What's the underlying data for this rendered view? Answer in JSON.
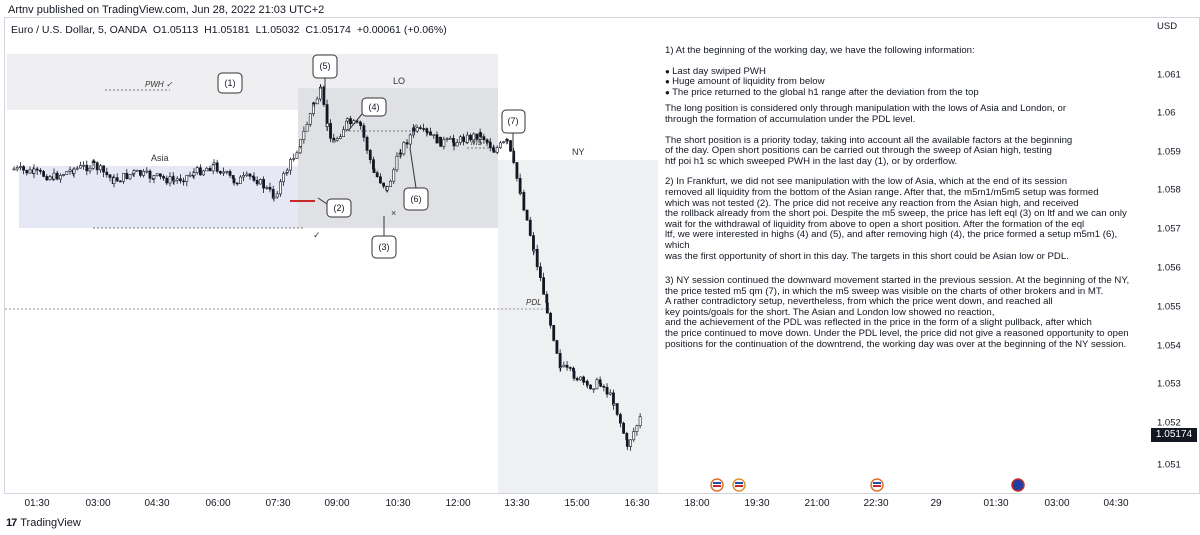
{
  "publisher_line": "Artnv published on TradingView.com, Jun 28, 2022 21:03 UTC+2",
  "ohlc": {
    "symbol": "Euro / U.S. Dollar, 5, OANDA",
    "open": "O1.05113",
    "high": "H1.05181",
    "low": "L1.05032",
    "close": "C1.05174",
    "change": "+0.00061 (+0.06%)"
  },
  "currency": "USD",
  "last_price": "1.05174",
  "footer_brand": "TradingView",
  "colors": {
    "bull": "#131722",
    "bear": "#131722",
    "asia_box": "#e6e8f5",
    "lo_box": "#e3e4e6",
    "ny_box": "#eff0f2",
    "level_line": "#888888",
    "pdl_line": "#999999",
    "red_marker": "#c62828"
  },
  "zone_labels": {
    "asia": "Asia",
    "lo": "LO",
    "ny": "NY",
    "pwh": "PWH ✓",
    "pdl": "PDL",
    "m5": "m5 ✓"
  },
  "callouts": [
    "(1)",
    "(2)",
    "(3)",
    "(4)",
    "(5)",
    "(6)",
    "(7)"
  ],
  "chart_data": {
    "type": "line",
    "title": "Euro / U.S. Dollar, 5, OANDA",
    "x_ticks": [
      "01:30",
      "03:00",
      "04:30",
      "06:00",
      "07:30",
      "09:00",
      "10:30",
      "12:00",
      "13:30",
      "15:00",
      "16:30",
      "18:00",
      "19:30",
      "21:00",
      "22:30",
      "29",
      "01:30",
      "03:00",
      "04:30"
    ],
    "y_ticks": [
      1.061,
      1.06,
      1.059,
      1.058,
      1.057,
      1.056,
      1.055,
      1.054,
      1.053,
      1.052,
      1.051
    ],
    "ylim": [
      1.0496,
      1.0636
    ],
    "series": [
      {
        "x": [
          "01:00",
          "01:30",
          "02:00",
          "02:30",
          "03:00",
          "03:30",
          "04:00",
          "04:30",
          "05:00",
          "05:30",
          "06:00",
          "06:30",
          "07:00",
          "07:30",
          "07:50",
          "08:10",
          "08:30",
          "08:40",
          "08:50",
          "09:00",
          "09:20",
          "09:40",
          "10:00",
          "10:20",
          "10:40",
          "11:00",
          "11:20",
          "11:40",
          "12:00",
          "12:20",
          "12:40",
          "13:00",
          "13:20",
          "13:40",
          "14:00",
          "14:20",
          "14:40",
          "15:00",
          "15:20",
          "15:40",
          "16:00",
          "16:20",
          "16:40"
        ],
        "y": [
          1.0581,
          1.058,
          1.0579,
          1.0581,
          1.0582,
          1.0578,
          1.058,
          1.0579,
          1.0578,
          1.058,
          1.0582,
          1.0578,
          1.0579,
          1.0574,
          1.0581,
          1.0588,
          1.0598,
          1.0601,
          1.0592,
          1.0588,
          1.0593,
          1.0592,
          1.058,
          1.0576,
          1.0586,
          1.0591,
          1.059,
          1.0588,
          1.0588,
          1.0589,
          1.059,
          1.0586,
          1.0588,
          1.0575,
          1.056,
          1.0545,
          1.053,
          1.0528,
          1.0525,
          1.0526,
          1.0521,
          1.051,
          1.0517
        ]
      }
    ],
    "levels": {
      "pwh": 1.0602,
      "asia_low": 1.0571,
      "pdl": 1.055
    }
  },
  "analysis": {
    "p1_title": "1) At the beginning of the working day, we have the following information:",
    "bullets": [
      "Last day swiped PWH",
      "Huge amount of liquidity from below",
      "The price returned to the global h1 range after the deviation from the top"
    ],
    "p1_long": "The long position is considered only through manipulation with the lows of Asia and London, or\nthrough the formation of accumulation under the PDL level.",
    "p1_short": "The short position is a priority today, taking into account all the available factors at the beginning\nof the day. Open short positions can be carried out through the sweep of Asian high, testing\nhtf poi h1 sc which sweeped PWH in the last day (1), or by orderflow.",
    "p2": "2) In Frankfurt, we did not see manipulation with the low of Asia, which at the end of its session\nremoved all liquidity from the bottom of the Asian range. After that, the m5m1/m5m5 setup was formed\nwhich was not tested (2). The price did not receive any reaction from the Asian high, and received\nthe rollback  already from the short poi. Despite the m5 sweep, the price has left eql (3) on ltf and we can only\nwait for the withdrawal of liquidity from above to open a short position. After the formation of the eql\nltf, we were interested in highs (4) and (5), and after removing high (4), the price formed a setup m5m1 (6), which\nwas the first opportunity of short in this day. The targets in this short could be Asian low or PDL.",
    "p3": "3) NY session continued the downward movement started in the previous session. At the beginning of the NY,\nthe price tested m5 qm (7), in which the m5 sweep was visible on the charts of other brokers and in MT.\nA rather contradictory setup, nevertheless, from which the price went down, and reached all\nkey points/goals for the short. The Asian and London low showed no reaction,\nand the achievement of the PDL was reflected in the price in the form of a slight pullback, after which\nthe price continued to move down. Under the PDL level, the price did not give a reasoned opportunity to open\npositions for the continuation of the downtrend, the working day was over at the beginning of the NY session."
  }
}
